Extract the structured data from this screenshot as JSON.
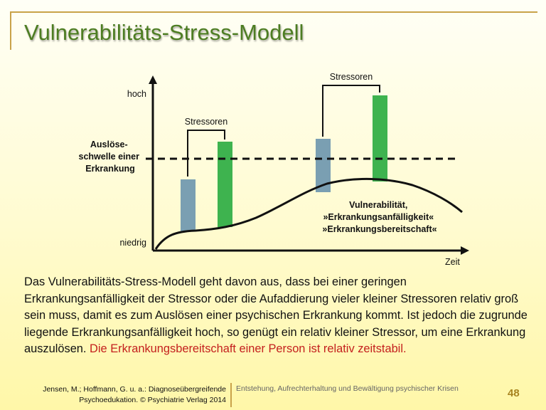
{
  "slide": {
    "title": "Vulnerabilitäts-Stress-Modell",
    "page_number": "48"
  },
  "diagram": {
    "y_high": "hoch",
    "y_low": "niedrig",
    "x_label": "Zeit",
    "threshold_label": [
      "Auslöse-",
      "schwelle einer",
      "Erkrankung"
    ],
    "stressor_label_1": "Stressoren",
    "stressor_label_2": "Stressoren",
    "vulnerability_label": [
      "Vulnerabilität,",
      "»Erkrankungsanfälligkeit«",
      "»Erkrankungsbereitschaft«"
    ],
    "colors": {
      "bar_blue": "#7a9fb2",
      "bar_green": "#3eb34f",
      "title_green": "#4d7d22",
      "accent_red": "#c4201e",
      "frame_gold": "#c9a24a"
    }
  },
  "body": {
    "text": "Das Vulnerabilitäts-Stress-Modell geht davon aus, dass bei einer geringen Erkrankungsanfälligkeit der Stressor oder die Aufaddierung vieler kleiner Stressoren relativ groß sein muss, damit es zum Auslösen einer psychischen Erkrankung kommt. Ist jedoch die zugrunde liegende Erkrankungsanfälligkeit hoch, so genügt ein relativ kleiner Stressor, um eine Erkrankung auszulösen.",
    "highlight": "Die Erkrankungsbereitschaft einer Person ist relativ zeitstabil."
  },
  "footer": {
    "reference_line1": "Jensen, M.; Hoffmann, G. u. a.:  Diagnoseübergreifende",
    "reference_line2": "Psychoedukation. © Psychiatrie Verlag 2014",
    "section": "Entstehung, Aufrechterhaltung und Bewältigung psychischer Krisen"
  }
}
